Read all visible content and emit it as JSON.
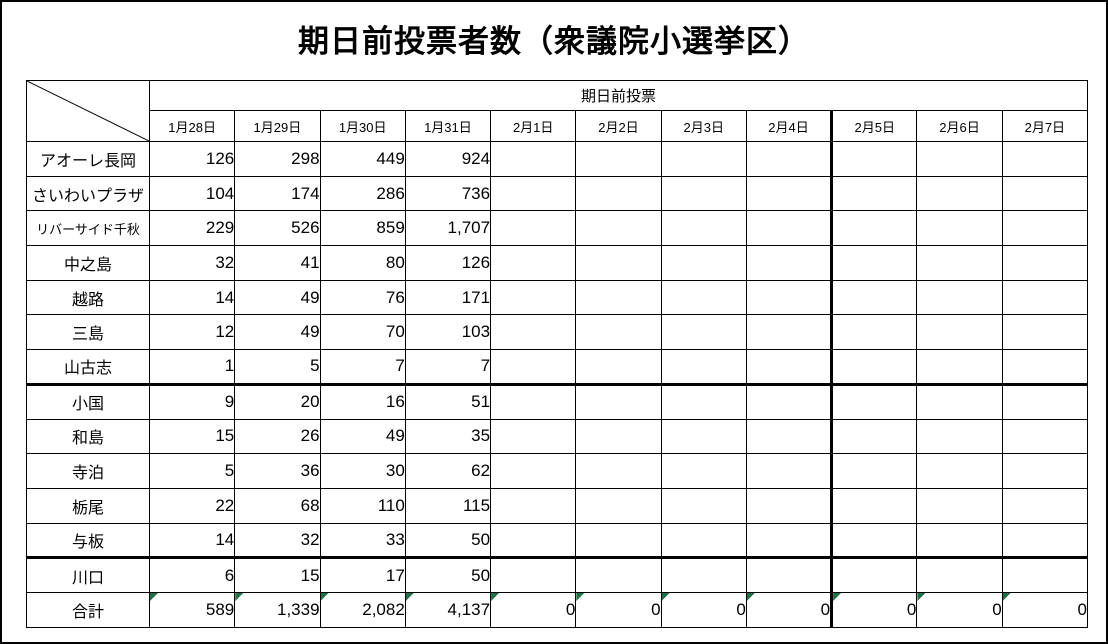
{
  "title": "期日前投票者数（衆議院小選挙区）",
  "table": {
    "group_header": "期日前投票",
    "date_headers": [
      "1月28日",
      "1月29日",
      "1月30日",
      "1月31日",
      "2月1日",
      "2月2日",
      "2月3日",
      "2月4日",
      "2月5日",
      "2月6日",
      "2月7日"
    ],
    "rows": [
      {
        "label": "アオーレ長岡",
        "values": [
          "126",
          "298",
          "449",
          "924",
          "",
          "",
          "",
          "",
          "",
          "",
          ""
        ]
      },
      {
        "label": "さいわいプラザ",
        "values": [
          "104",
          "174",
          "286",
          "736",
          "",
          "",
          "",
          "",
          "",
          "",
          ""
        ]
      },
      {
        "label": "リバーサイド千秋",
        "values": [
          "229",
          "526",
          "859",
          "1,707",
          "",
          "",
          "",
          "",
          "",
          "",
          ""
        ]
      },
      {
        "label": "中之島",
        "values": [
          "32",
          "41",
          "80",
          "126",
          "",
          "",
          "",
          "",
          "",
          "",
          ""
        ]
      },
      {
        "label": "越路",
        "values": [
          "14",
          "49",
          "76",
          "171",
          "",
          "",
          "",
          "",
          "",
          "",
          ""
        ]
      },
      {
        "label": "三島",
        "values": [
          "12",
          "49",
          "70",
          "103",
          "",
          "",
          "",
          "",
          "",
          "",
          ""
        ]
      },
      {
        "label": "山古志",
        "values": [
          "1",
          "5",
          "7",
          "7",
          "",
          "",
          "",
          "",
          "",
          "",
          ""
        ]
      },
      {
        "label": "小国",
        "values": [
          "9",
          "20",
          "16",
          "51",
          "",
          "",
          "",
          "",
          "",
          "",
          ""
        ]
      },
      {
        "label": "和島",
        "values": [
          "15",
          "26",
          "49",
          "35",
          "",
          "",
          "",
          "",
          "",
          "",
          ""
        ]
      },
      {
        "label": "寺泊",
        "values": [
          "5",
          "36",
          "30",
          "62",
          "",
          "",
          "",
          "",
          "",
          "",
          ""
        ]
      },
      {
        "label": "栃尾",
        "values": [
          "22",
          "68",
          "110",
          "115",
          "",
          "",
          "",
          "",
          "",
          "",
          ""
        ]
      },
      {
        "label": "与板",
        "values": [
          "14",
          "32",
          "33",
          "50",
          "",
          "",
          "",
          "",
          "",
          "",
          ""
        ]
      },
      {
        "label": "川口",
        "values": [
          "6",
          "15",
          "17",
          "50",
          "",
          "",
          "",
          "",
          "",
          "",
          ""
        ]
      },
      {
        "label": "合計",
        "values": [
          "589",
          "1,339",
          "2,082",
          "4,137",
          "0",
          "0",
          "0",
          "0",
          "0",
          "0",
          "0"
        ]
      }
    ]
  },
  "colors": {
    "border": "#000000",
    "indicator_green": "#1e7145",
    "background": "#ffffff"
  }
}
